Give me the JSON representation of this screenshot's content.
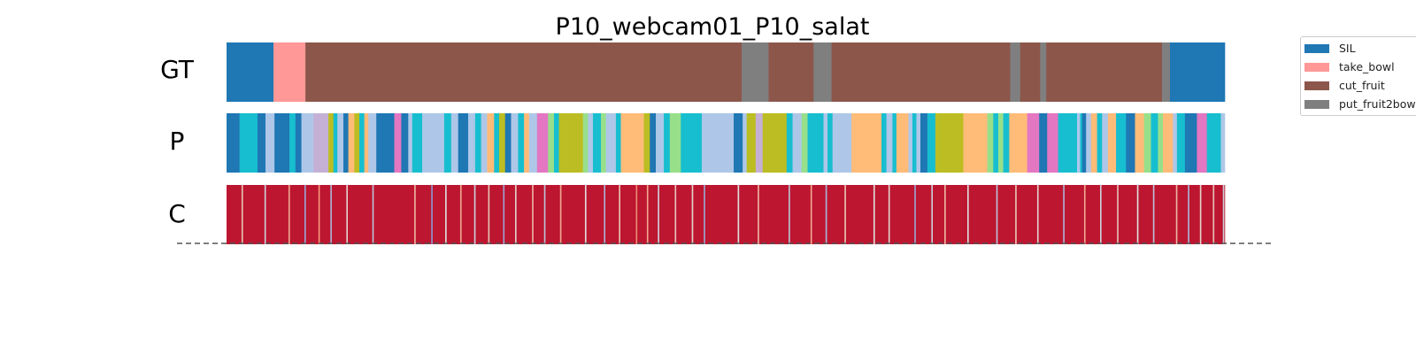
{
  "chart_data": {
    "type": "segmentation-timeline",
    "title": "P10_webcam01_P10_salat",
    "rows": [
      {
        "label": "GT"
      },
      {
        "label": "P"
      },
      {
        "label": "C"
      }
    ],
    "frames": 1000,
    "legend": {
      "placement": "outside-right",
      "entries": [
        {
          "name": "SIL",
          "color": "#1f77b4"
        },
        {
          "name": "take_bowl",
          "color": "#ff9896"
        },
        {
          "name": "cut_fruit",
          "color": "#8c564b"
        },
        {
          "name": "put_fruit2bowl",
          "color": "#7f7f7f"
        }
      ]
    },
    "ground_truth": [
      {
        "label": "SIL",
        "start": 0,
        "end": 47
      },
      {
        "label": "take_bowl",
        "start": 47,
        "end": 79
      },
      {
        "label": "cut_fruit",
        "start": 79,
        "end": 516
      },
      {
        "label": "put_fruit2bowl",
        "start": 516,
        "end": 543
      },
      {
        "label": "cut_fruit",
        "start": 543,
        "end": 588
      },
      {
        "label": "put_fruit2bowl",
        "start": 588,
        "end": 606
      },
      {
        "label": "cut_fruit",
        "start": 606,
        "end": 785
      },
      {
        "label": "put_fruit2bowl",
        "start": 785,
        "end": 795
      },
      {
        "label": "cut_fruit",
        "start": 795,
        "end": 815
      },
      {
        "label": "put_fruit2bowl",
        "start": 815,
        "end": 821
      },
      {
        "label": "cut_fruit",
        "start": 821,
        "end": 937
      },
      {
        "label": "put_fruit2bowl",
        "start": 937,
        "end": 945
      },
      {
        "label": "SIL",
        "start": 945,
        "end": 1000
      }
    ],
    "prediction": [
      {
        "color": "#1f77b4",
        "start": 0,
        "end": 13
      },
      {
        "color": "#17becf",
        "start": 13,
        "end": 31
      },
      {
        "color": "#1f77b4",
        "start": 31,
        "end": 39
      },
      {
        "color": "#aec7e8",
        "start": 39,
        "end": 48
      },
      {
        "color": "#1f77b4",
        "start": 48,
        "end": 63
      },
      {
        "color": "#17becf",
        "start": 63,
        "end": 69
      },
      {
        "color": "#1f77b4",
        "start": 69,
        "end": 75
      },
      {
        "color": "#aec7e8",
        "start": 75,
        "end": 87
      },
      {
        "color": "#c5b0d5",
        "start": 87,
        "end": 102
      },
      {
        "color": "#bcbd22",
        "start": 102,
        "end": 107
      },
      {
        "color": "#17becf",
        "start": 107,
        "end": 111
      },
      {
        "color": "#aec7e8",
        "start": 111,
        "end": 117
      },
      {
        "color": "#1f77b4",
        "start": 117,
        "end": 122
      },
      {
        "color": "#ffbb78",
        "start": 122,
        "end": 128
      },
      {
        "color": "#bcbd22",
        "start": 128,
        "end": 133
      },
      {
        "color": "#17becf",
        "start": 133,
        "end": 138
      },
      {
        "color": "#ffbb78",
        "start": 138,
        "end": 142
      },
      {
        "color": "#aec7e8",
        "start": 142,
        "end": 150
      },
      {
        "color": "#1f77b4",
        "start": 150,
        "end": 168
      },
      {
        "color": "#e377c2",
        "start": 168,
        "end": 175
      },
      {
        "color": "#1f77b4",
        "start": 175,
        "end": 182
      },
      {
        "color": "#aec7e8",
        "start": 182,
        "end": 186
      },
      {
        "color": "#17becf",
        "start": 186,
        "end": 196
      },
      {
        "color": "#aec7e8",
        "start": 196,
        "end": 218
      },
      {
        "color": "#17becf",
        "start": 218,
        "end": 225
      },
      {
        "color": "#aec7e8",
        "start": 225,
        "end": 232
      },
      {
        "color": "#1f77b4",
        "start": 232,
        "end": 242
      },
      {
        "color": "#aec7e8",
        "start": 242,
        "end": 249
      },
      {
        "color": "#17becf",
        "start": 249,
        "end": 255
      },
      {
        "color": "#aec7e8",
        "start": 255,
        "end": 261
      },
      {
        "color": "#ffbb78",
        "start": 261,
        "end": 268
      },
      {
        "color": "#17becf",
        "start": 268,
        "end": 273
      },
      {
        "color": "#bcbd22",
        "start": 273,
        "end": 279
      },
      {
        "color": "#1f77b4",
        "start": 279,
        "end": 285
      },
      {
        "color": "#aec7e8",
        "start": 285,
        "end": 292
      },
      {
        "color": "#17becf",
        "start": 292,
        "end": 298
      },
      {
        "color": "#ffbb78",
        "start": 298,
        "end": 303
      },
      {
        "color": "#aec7e8",
        "start": 303,
        "end": 311
      },
      {
        "color": "#e377c2",
        "start": 311,
        "end": 322
      },
      {
        "color": "#98df8a",
        "start": 322,
        "end": 328
      },
      {
        "color": "#17becf",
        "start": 328,
        "end": 333
      },
      {
        "color": "#bcbd22",
        "start": 333,
        "end": 357
      },
      {
        "color": "#98df8a",
        "start": 357,
        "end": 362
      },
      {
        "color": "#aec7e8",
        "start": 362,
        "end": 367
      },
      {
        "color": "#17becf",
        "start": 367,
        "end": 375
      },
      {
        "color": "#98df8a",
        "start": 375,
        "end": 380
      },
      {
        "color": "#aec7e8",
        "start": 380,
        "end": 390
      },
      {
        "color": "#17becf",
        "start": 390,
        "end": 395
      },
      {
        "color": "#ffbb78",
        "start": 395,
        "end": 418
      },
      {
        "color": "#bcbd22",
        "start": 418,
        "end": 424
      },
      {
        "color": "#1f77b4",
        "start": 424,
        "end": 430
      },
      {
        "color": "#aec7e8",
        "start": 430,
        "end": 438
      },
      {
        "color": "#17becf",
        "start": 438,
        "end": 444
      },
      {
        "color": "#98df8a",
        "start": 444,
        "end": 455
      },
      {
        "color": "#17becf",
        "start": 455,
        "end": 476
      },
      {
        "color": "#aec7e8",
        "start": 476,
        "end": 508
      },
      {
        "color": "#1f77b4",
        "start": 508,
        "end": 517
      },
      {
        "color": "#aec7e8",
        "start": 517,
        "end": 521
      },
      {
        "color": "#bcbd22",
        "start": 521,
        "end": 530
      },
      {
        "color": "#c5b0d5",
        "start": 530,
        "end": 537
      },
      {
        "color": "#bcbd22",
        "start": 537,
        "end": 561
      },
      {
        "color": "#17becf",
        "start": 561,
        "end": 567
      },
      {
        "color": "#aec7e8",
        "start": 567,
        "end": 576
      },
      {
        "color": "#98df8a",
        "start": 576,
        "end": 582
      },
      {
        "color": "#17becf",
        "start": 582,
        "end": 598
      },
      {
        "color": "#aec7e8",
        "start": 598,
        "end": 602
      },
      {
        "color": "#17becf",
        "start": 602,
        "end": 607
      },
      {
        "color": "#aec7e8",
        "start": 607,
        "end": 626
      },
      {
        "color": "#ffbb78",
        "start": 626,
        "end": 656
      },
      {
        "color": "#17becf",
        "start": 656,
        "end": 661
      },
      {
        "color": "#aec7e8",
        "start": 661,
        "end": 667
      },
      {
        "color": "#17becf",
        "start": 667,
        "end": 671
      },
      {
        "color": "#ffbb78",
        "start": 671,
        "end": 683
      },
      {
        "color": "#aec7e8",
        "start": 683,
        "end": 687
      },
      {
        "color": "#17becf",
        "start": 687,
        "end": 691
      },
      {
        "color": "#aec7e8",
        "start": 691,
        "end": 695
      },
      {
        "color": "#1f77b4",
        "start": 695,
        "end": 702
      },
      {
        "color": "#17becf",
        "start": 702,
        "end": 710
      },
      {
        "color": "#bcbd22",
        "start": 710,
        "end": 738
      },
      {
        "color": "#ffbb78",
        "start": 738,
        "end": 762
      },
      {
        "color": "#98df8a",
        "start": 762,
        "end": 768
      },
      {
        "color": "#17becf",
        "start": 768,
        "end": 773
      },
      {
        "color": "#98df8a",
        "start": 773,
        "end": 778
      },
      {
        "color": "#17becf",
        "start": 778,
        "end": 784
      },
      {
        "color": "#ffbb78",
        "start": 784,
        "end": 802
      },
      {
        "color": "#e377c2",
        "start": 802,
        "end": 814
      },
      {
        "color": "#1f77b4",
        "start": 814,
        "end": 822
      },
      {
        "color": "#e377c2",
        "start": 822,
        "end": 833
      },
      {
        "color": "#17becf",
        "start": 833,
        "end": 852
      },
      {
        "color": "#aec7e8",
        "start": 852,
        "end": 855
      },
      {
        "color": "#17becf",
        "start": 855,
        "end": 857
      },
      {
        "color": "#1f77b4",
        "start": 857,
        "end": 861
      },
      {
        "color": "#aec7e8",
        "start": 861,
        "end": 866
      },
      {
        "color": "#ffbb78",
        "start": 866,
        "end": 872
      },
      {
        "color": "#17becf",
        "start": 872,
        "end": 877
      },
      {
        "color": "#aec7e8",
        "start": 877,
        "end": 883
      },
      {
        "color": "#ffbb78",
        "start": 883,
        "end": 891
      },
      {
        "color": "#17becf",
        "start": 891,
        "end": 901
      },
      {
        "color": "#1f77b4",
        "start": 901,
        "end": 910
      },
      {
        "color": "#ffbb78",
        "start": 910,
        "end": 919
      },
      {
        "color": "#98df8a",
        "start": 919,
        "end": 926
      },
      {
        "color": "#17becf",
        "start": 926,
        "end": 933
      },
      {
        "color": "#98df8a",
        "start": 933,
        "end": 938
      },
      {
        "color": "#ffbb78",
        "start": 938,
        "end": 948
      },
      {
        "color": "#aec7e8",
        "start": 948,
        "end": 952
      },
      {
        "color": "#17becf",
        "start": 952,
        "end": 960
      },
      {
        "color": "#1f77b4",
        "start": 960,
        "end": 972
      },
      {
        "color": "#e377c2",
        "start": 972,
        "end": 982
      },
      {
        "color": "#17becf",
        "start": 982,
        "end": 996
      },
      {
        "color": "#aec7e8",
        "start": 996,
        "end": 1000
      }
    ],
    "confidence": {
      "colormap": "coolwarm",
      "range": [
        0,
        1
      ],
      "dominant_value": 0.97,
      "low_confidence_frames": [
        {
          "frame": 15,
          "value": 0.6
        },
        {
          "frame": 38,
          "value": 0.45
        },
        {
          "frame": 62,
          "value": 0.7
        },
        {
          "frame": 78,
          "value": 0.3
        },
        {
          "frame": 92,
          "value": 0.75
        },
        {
          "frame": 104,
          "value": 0.35
        },
        {
          "frame": 120,
          "value": 0.55
        },
        {
          "frame": 146,
          "value": 0.4
        },
        {
          "frame": 188,
          "value": 0.65
        },
        {
          "frame": 205,
          "value": 0.25
        },
        {
          "frame": 219,
          "value": 0.5
        },
        {
          "frame": 234,
          "value": 0.7
        },
        {
          "frame": 248,
          "value": 0.45
        },
        {
          "frame": 262,
          "value": 0.6
        },
        {
          "frame": 277,
          "value": 0.3
        },
        {
          "frame": 289,
          "value": 0.55
        },
        {
          "frame": 306,
          "value": 0.65
        },
        {
          "frame": 318,
          "value": 0.4
        },
        {
          "frame": 334,
          "value": 0.7
        },
        {
          "frame": 359,
          "value": 0.5
        },
        {
          "frame": 378,
          "value": 0.35
        },
        {
          "frame": 393,
          "value": 0.6
        },
        {
          "frame": 410,
          "value": 0.78
        },
        {
          "frame": 421,
          "value": 0.7
        },
        {
          "frame": 432,
          "value": 0.45
        },
        {
          "frame": 449,
          "value": 0.6
        },
        {
          "frame": 466,
          "value": 0.55
        },
        {
          "frame": 478,
          "value": 0.3
        },
        {
          "frame": 512,
          "value": 0.5
        },
        {
          "frame": 532,
          "value": 0.65
        },
        {
          "frame": 563,
          "value": 0.4
        },
        {
          "frame": 585,
          "value": 0.7
        },
        {
          "frame": 600,
          "value": 0.35
        },
        {
          "frame": 619,
          "value": 0.6
        },
        {
          "frame": 648,
          "value": 0.5
        },
        {
          "frame": 663,
          "value": 0.55
        },
        {
          "frame": 689,
          "value": 0.3
        },
        {
          "frame": 706,
          "value": 0.45
        },
        {
          "frame": 719,
          "value": 0.65
        },
        {
          "frame": 742,
          "value": 0.5
        },
        {
          "frame": 771,
          "value": 0.4
        },
        {
          "frame": 790,
          "value": 0.6
        },
        {
          "frame": 812,
          "value": 0.55
        },
        {
          "frame": 838,
          "value": 0.35
        },
        {
          "frame": 859,
          "value": 0.7
        },
        {
          "frame": 875,
          "value": 0.45
        },
        {
          "frame": 892,
          "value": 0.6
        },
        {
          "frame": 912,
          "value": 0.5
        },
        {
          "frame": 928,
          "value": 0.4
        },
        {
          "frame": 951,
          "value": 0.65
        },
        {
          "frame": 963,
          "value": 0.35
        },
        {
          "frame": 975,
          "value": 0.55
        },
        {
          "frame": 988,
          "value": 0.6
        },
        {
          "frame": 998,
          "value": 0.45
        }
      ]
    }
  }
}
